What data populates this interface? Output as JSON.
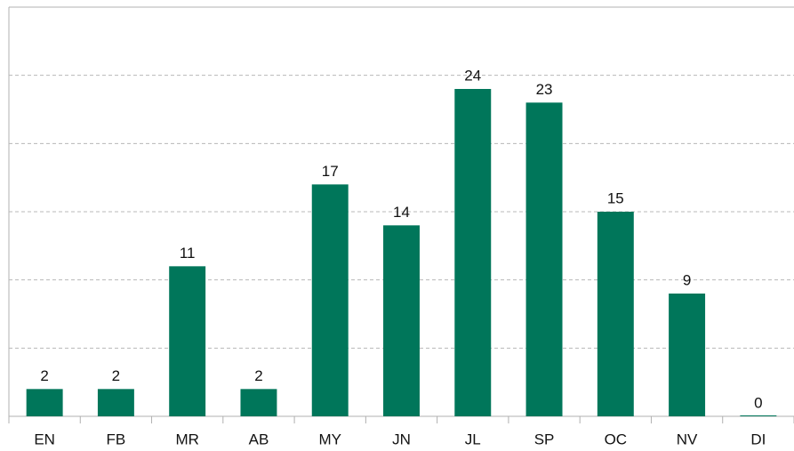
{
  "chart_data": {
    "type": "bar",
    "categories": [
      "EN",
      "FB",
      "MR",
      "AB",
      "MY",
      "JN",
      "JL",
      "SP",
      "OC",
      "NV",
      "DI"
    ],
    "values": [
      2,
      2,
      11,
      2,
      17,
      14,
      24,
      23,
      15,
      9,
      0
    ],
    "color": "#00765a",
    "ylim": [
      0,
      30
    ],
    "yticks": [
      0,
      5,
      10,
      15,
      20,
      25,
      30
    ],
    "grid": true
  }
}
